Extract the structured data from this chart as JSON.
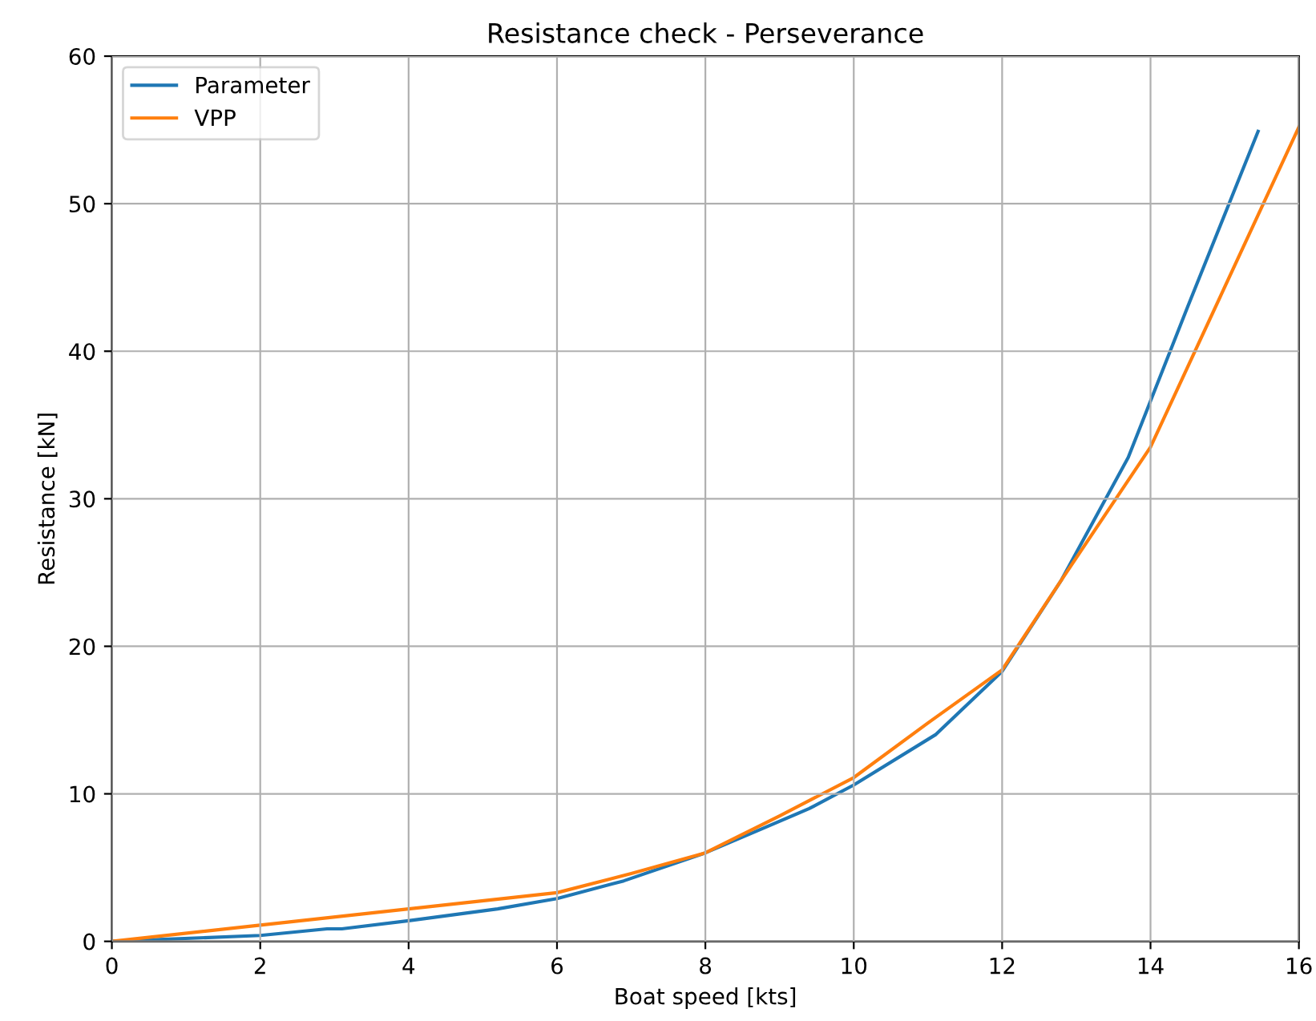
{
  "chart_data": {
    "type": "line",
    "title": "Resistance check - Perseverance",
    "xlabel": "Boat speed [kts]",
    "ylabel": "Resistance [kN]",
    "xlim": [
      0,
      16
    ],
    "ylim": [
      0,
      60
    ],
    "xticks": [
      0,
      2,
      4,
      6,
      8,
      10,
      12,
      14,
      16
    ],
    "yticks": [
      0,
      10,
      20,
      30,
      40,
      50,
      60
    ],
    "grid": true,
    "legend": "top left",
    "series": [
      {
        "name": "Parameter",
        "color": "#1f77b4",
        "x": [
          0,
          2,
          2.9,
          3.1,
          4,
          5.2,
          6,
          6.9,
          8,
          8.7,
          9.4,
          10,
          11.1,
          12,
          12.8,
          13.7,
          14.5,
          15.45
        ],
        "values": [
          0,
          0.4,
          0.85,
          0.85,
          1.4,
          2.2,
          2.9,
          4.1,
          6.0,
          7.5,
          9.0,
          10.6,
          14.0,
          18.3,
          24.5,
          32.8,
          43.0,
          54.9
        ]
      },
      {
        "name": "VPP",
        "color": "#ff7f0e",
        "x": [
          0,
          2,
          4,
          6,
          7,
          8,
          9,
          10,
          11,
          12,
          12.8,
          14,
          16
        ],
        "values": [
          0,
          1.1,
          2.2,
          3.3,
          4.6,
          6.0,
          8.5,
          11.1,
          14.8,
          18.4,
          24.5,
          33.5,
          55.2
        ]
      }
    ]
  }
}
